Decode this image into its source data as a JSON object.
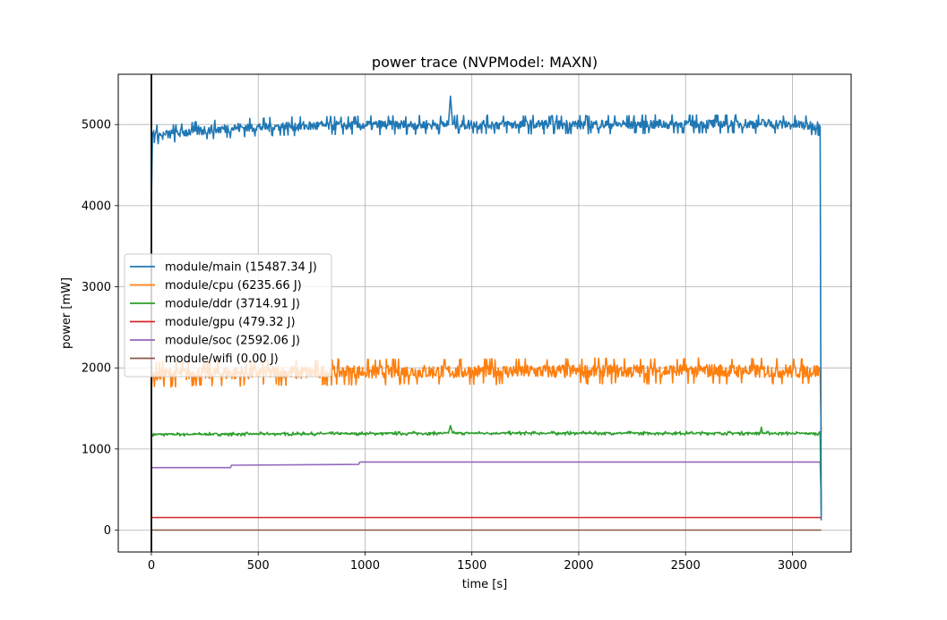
{
  "chart_data": {
    "type": "line",
    "title": "power trace (NVPModel: MAXN)",
    "xlabel": "time [s]",
    "ylabel": "power [mW]",
    "xlim": [
      -155,
      3275
    ],
    "ylim": [
      -270,
      5620
    ],
    "xticks": [
      0,
      500,
      1000,
      1500,
      2000,
      2500,
      3000
    ],
    "yticks": [
      0,
      1000,
      2000,
      3000,
      4000,
      5000
    ],
    "grid": true,
    "legend_position": "center-left",
    "vline_x": 0,
    "series": [
      {
        "name": "module/main (15487.34 J)",
        "color": "#1f77b4",
        "points": [
          [
            0,
            4050
          ],
          [
            5,
            4900
          ],
          [
            50,
            4860
          ],
          [
            100,
            4890
          ],
          [
            200,
            4920
          ],
          [
            300,
            4940
          ],
          [
            400,
            4960
          ],
          [
            600,
            4975
          ],
          [
            800,
            4985
          ],
          [
            1000,
            4990
          ],
          [
            1200,
            4995
          ],
          [
            1390,
            5000
          ],
          [
            1400,
            5350
          ],
          [
            1410,
            5000
          ],
          [
            1600,
            5000
          ],
          [
            2000,
            5000
          ],
          [
            2500,
            5005
          ],
          [
            2850,
            5010
          ],
          [
            3000,
            5000
          ],
          [
            3130,
            4980
          ],
          [
            3135,
            120
          ]
        ],
        "noise": 65
      },
      {
        "name": "module/cpu (6235.66 J)",
        "color": "#ff7f0e",
        "points": [
          [
            0,
            1750
          ],
          [
            5,
            1920
          ],
          [
            200,
            1930
          ],
          [
            500,
            1940
          ],
          [
            1000,
            1950
          ],
          [
            1500,
            1955
          ],
          [
            2000,
            1960
          ],
          [
            2500,
            1965
          ],
          [
            3000,
            1960
          ],
          [
            3130,
            1960
          ],
          [
            3135,
            1200
          ]
        ],
        "noise": 90
      },
      {
        "name": "module/ddr (3714.91 J)",
        "color": "#2ca02c",
        "points": [
          [
            0,
            1170
          ],
          [
            5,
            1180
          ],
          [
            500,
            1185
          ],
          [
            1000,
            1190
          ],
          [
            1390,
            1195
          ],
          [
            1400,
            1290
          ],
          [
            1410,
            1195
          ],
          [
            2000,
            1195
          ],
          [
            2850,
            1195
          ],
          [
            2855,
            1270
          ],
          [
            2860,
            1195
          ],
          [
            3130,
            1190
          ],
          [
            3135,
            240
          ]
        ],
        "noise": 12
      },
      {
        "name": "module/gpu (479.32 J)",
        "color": "#d62728",
        "points": [
          [
            0,
            155
          ],
          [
            3130,
            155
          ],
          [
            3135,
            150
          ]
        ],
        "noise": 0
      },
      {
        "name": "module/soc (2592.06 J)",
        "color": "#9467bd",
        "points": [
          [
            0,
            770
          ],
          [
            370,
            770
          ],
          [
            375,
            800
          ],
          [
            970,
            810
          ],
          [
            975,
            840
          ],
          [
            3130,
            840
          ],
          [
            3135,
            400
          ]
        ],
        "noise": 0
      },
      {
        "name": "module/wifi (0.00 J)",
        "color": "#8c564b",
        "points": [
          [
            0,
            0
          ],
          [
            3135,
            0
          ]
        ],
        "noise": 0
      }
    ]
  }
}
